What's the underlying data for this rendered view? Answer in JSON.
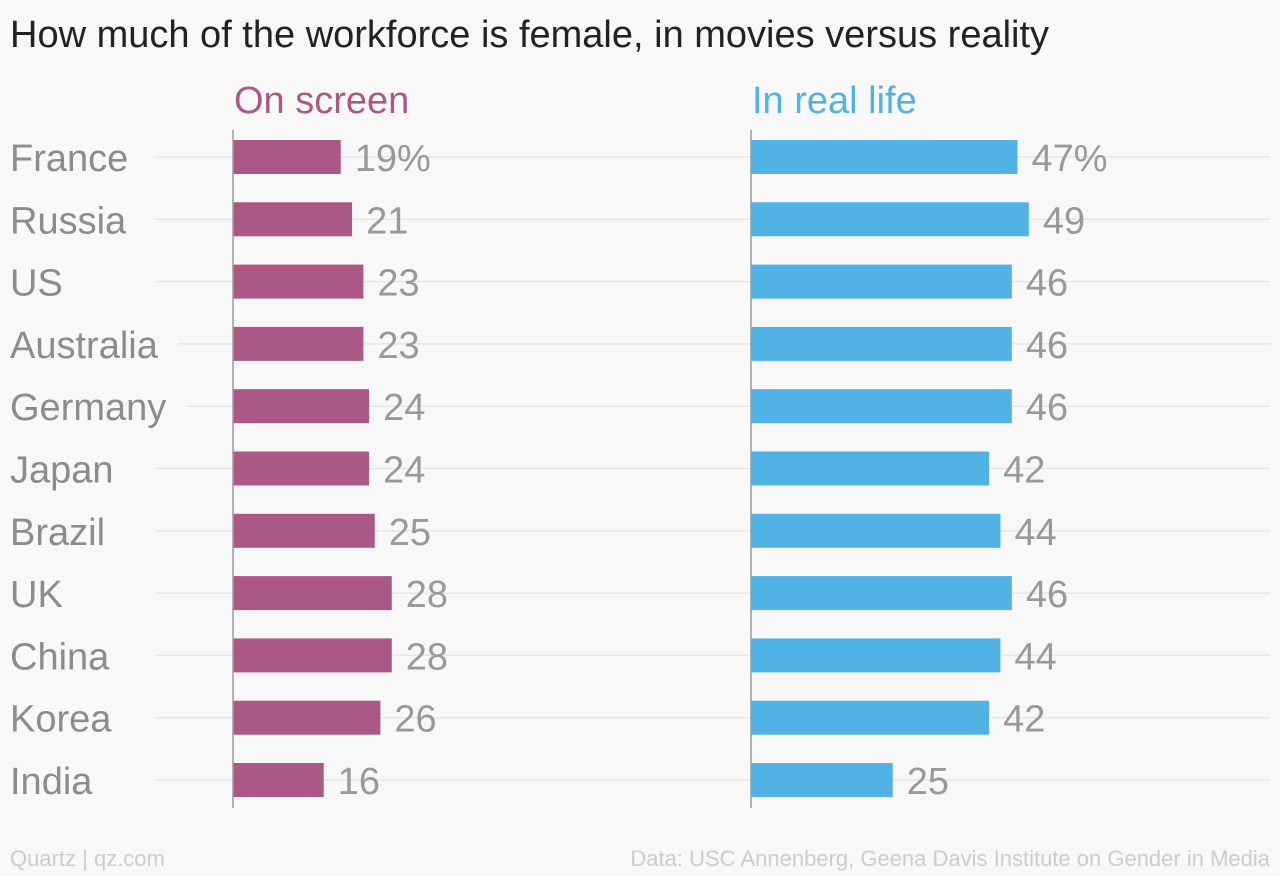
{
  "title": "How much of the workforce is female, in movies versus reality",
  "footer": {
    "credit": "Quartz | qz.com",
    "source": "Data: USC Annenberg, Geena Davis Institute on Gender in Media"
  },
  "colors": {
    "on_screen": "#ab5887",
    "real_life": "#51b2e5",
    "category_text": "#8c8c8c",
    "value_text": "#999999",
    "gridline": "#e6e6e6",
    "axis": "#9a9a9a"
  },
  "chart_data": {
    "type": "bar",
    "orientation": "horizontal",
    "categories": [
      "France",
      "Russia",
      "US",
      "Australia",
      "Germany",
      "Japan",
      "Brazil",
      "UK",
      "China",
      "Korea",
      "India"
    ],
    "series": [
      {
        "name": "On screen",
        "values": [
          19,
          21,
          23,
          23,
          24,
          24,
          25,
          28,
          28,
          26,
          16
        ],
        "value_labels": [
          "19%",
          "21",
          "23",
          "23",
          "24",
          "24",
          "25",
          "28",
          "28",
          "26",
          "16"
        ]
      },
      {
        "name": "In real life",
        "values": [
          47,
          49,
          46,
          46,
          46,
          42,
          44,
          46,
          44,
          42,
          25
        ],
        "value_labels": [
          "47%",
          "49",
          "46",
          "46",
          "46",
          "42",
          "44",
          "46",
          "44",
          "42",
          "25"
        ]
      }
    ],
    "unit": "%",
    "layout": "side-by-side panels",
    "grid": true,
    "legend": "panel titles above each panel"
  }
}
